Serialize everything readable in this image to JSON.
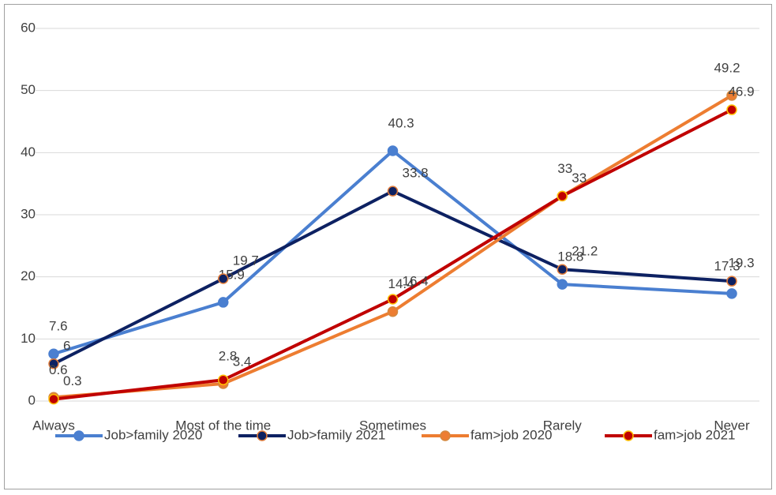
{
  "chart_data": {
    "type": "line",
    "categories": [
      "Always",
      "Most of the time",
      "Sometimes",
      "Rarely",
      "Never"
    ],
    "series": [
      {
        "name": "Job>family 2020",
        "color": "#4a7fd0",
        "values": [
          7.6,
          15.9,
          40.3,
          18.8,
          17.3
        ]
      },
      {
        "name": "Job>family 2021",
        "color": "#0d2162",
        "values": [
          6,
          19.7,
          33.8,
          21.2,
          19.3
        ]
      },
      {
        "name": "fam>job 2020",
        "color": "#ed7d31",
        "values": [
          0.6,
          2.8,
          14.4,
          33,
          49.2
        ]
      },
      {
        "name": "fam>job 2021",
        "color": "#c00000",
        "values": [
          0.3,
          3.4,
          16.4,
          33,
          46.9
        ]
      }
    ],
    "ylim": [
      0,
      60
    ],
    "yticks": [
      0,
      10,
      20,
      30,
      40,
      50,
      60
    ],
    "grid": true,
    "legend": "bottom"
  }
}
